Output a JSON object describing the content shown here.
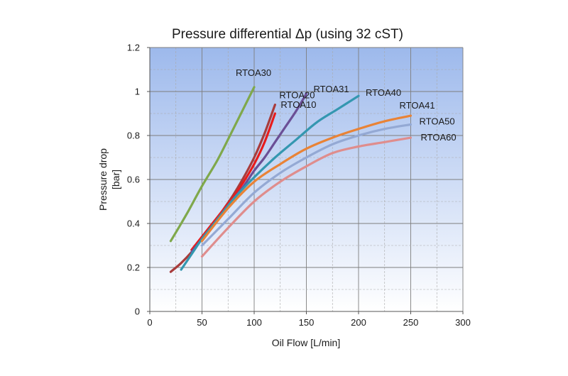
{
  "chart_data": {
    "type": "line",
    "title": "Pressure differential Δp (using 32 cST)",
    "xlabel": "Oil Flow [L/min]",
    "ylabel": "Pressure drop",
    "ylabel_unit": "[bar]",
    "xlim": [
      0,
      300
    ],
    "ylim": [
      0,
      1.2
    ],
    "xticks": [
      0,
      50,
      100,
      150,
      200,
      250,
      300
    ],
    "yticks": [
      0,
      0.2,
      0.4,
      0.6,
      0.8,
      1,
      1.2
    ],
    "xtick_labels": [
      "0",
      "50",
      "100",
      "150",
      "200",
      "250",
      "300"
    ],
    "ytick_labels": [
      "0",
      "0.2",
      "0.4",
      "0.6",
      "0.8",
      "1",
      "1.2"
    ],
    "grid": true,
    "background": "gradient-blue-to-white",
    "series": [
      {
        "name": "RTOA30",
        "color": "#7fa84b",
        "x": [
          20,
          35,
          50,
          65,
          80,
          100
        ],
        "y": [
          0.32,
          0.44,
          0.57,
          0.69,
          0.83,
          1.02
        ]
      },
      {
        "name": "RTOA20",
        "color": "#a83c3c",
        "x": [
          20,
          30,
          40,
          50,
          60,
          70,
          80,
          90,
          100,
          110,
          120
        ],
        "y": [
          0.18,
          0.22,
          0.27,
          0.33,
          0.39,
          0.46,
          0.53,
          0.61,
          0.7,
          0.81,
          0.94
        ]
      },
      {
        "name": "RTOA10",
        "color": "#e81c1c",
        "x": [
          40,
          50,
          60,
          70,
          80,
          90,
          100,
          110,
          120
        ],
        "y": [
          0.28,
          0.34,
          0.4,
          0.46,
          0.52,
          0.59,
          0.67,
          0.77,
          0.9
        ]
      },
      {
        "name": "RTOA31",
        "color": "#6b4f96",
        "x": [
          40,
          50,
          60,
          70,
          80,
          90,
          100,
          110,
          120,
          130,
          140,
          150
        ],
        "y": [
          0.27,
          0.33,
          0.39,
          0.45,
          0.51,
          0.57,
          0.64,
          0.7,
          0.77,
          0.84,
          0.91,
          0.99
        ]
      },
      {
        "name": "RTOA40",
        "color": "#3497b0",
        "x": [
          30,
          40,
          50,
          60,
          80,
          100,
          120,
          140,
          160,
          180,
          200
        ],
        "y": [
          0.19,
          0.26,
          0.33,
          0.39,
          0.51,
          0.61,
          0.7,
          0.78,
          0.86,
          0.92,
          0.98
        ]
      },
      {
        "name": "RTOA41",
        "color": "#e98336",
        "x": [
          50,
          75,
          100,
          125,
          150,
          175,
          200,
          225,
          250
        ],
        "y": [
          0.32,
          0.47,
          0.59,
          0.67,
          0.74,
          0.79,
          0.83,
          0.865,
          0.89
        ]
      },
      {
        "name": "RTOA50",
        "color": "#94a9d4",
        "x": [
          50,
          75,
          100,
          125,
          150,
          175,
          200,
          225,
          250
        ],
        "y": [
          0.3,
          0.42,
          0.54,
          0.63,
          0.7,
          0.76,
          0.8,
          0.83,
          0.85
        ]
      },
      {
        "name": "RTOA60",
        "color": "#df8d8d",
        "x": [
          50,
          75,
          100,
          125,
          150,
          175,
          200,
          225,
          250
        ],
        "y": [
          0.25,
          0.38,
          0.5,
          0.59,
          0.66,
          0.72,
          0.75,
          0.77,
          0.79
        ]
      }
    ]
  }
}
